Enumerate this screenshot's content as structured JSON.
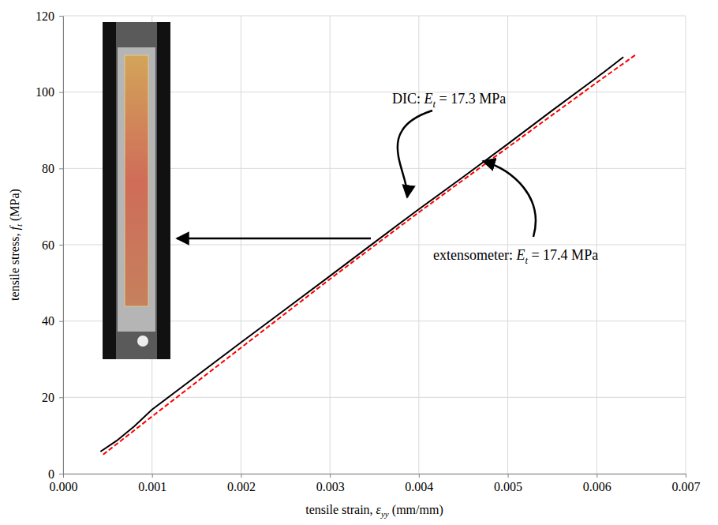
{
  "chart_data": {
    "type": "line",
    "x_label": [
      "tensile strain, ",
      "ε",
      "yy",
      " (mm/mm)"
    ],
    "y_label": [
      "tensile stress, ",
      "f",
      "t",
      " (MPa)"
    ],
    "xlim": [
      0,
      0.007
    ],
    "xticks": [
      {
        "value": 0,
        "label": "0.000"
      },
      {
        "value": 0.001,
        "label": "0.001"
      },
      {
        "value": 0.002,
        "label": "0.002"
      },
      {
        "value": 0.003,
        "label": "0.003"
      },
      {
        "value": 0.004,
        "label": "0.004"
      },
      {
        "value": 0.005,
        "label": "0.005"
      },
      {
        "value": 0.006,
        "label": "0.006"
      },
      {
        "value": 0.007,
        "label": "0.007"
      }
    ],
    "ylim": [
      0,
      120
    ],
    "yticks": [
      0,
      20,
      40,
      60,
      80,
      100,
      120
    ],
    "grid": true,
    "series": [
      {
        "color": "#000000",
        "line_style": "solid",
        "x": [
          0.00042,
          0.0006,
          0.0008,
          0.001,
          0.0015,
          0.002,
          0.0025,
          0.003,
          0.0035,
          0.004,
          0.0045,
          0.005,
          0.0055,
          0.006,
          0.0063
        ],
        "values": [
          5.8,
          8.6,
          12.4,
          16.8,
          25.6,
          34.4,
          43.1,
          51.8,
          60.6,
          69.3,
          77.8,
          86.4,
          95.2,
          103.8,
          109.2
        ]
      },
      {
        "color": "#ff0000",
        "line_style": "dashed",
        "x": [
          0.00045,
          0.001,
          0.002,
          0.003,
          0.004,
          0.005,
          0.006,
          0.00645
        ],
        "values": [
          5.0,
          15.0,
          33.0,
          51.0,
          68.5,
          85.5,
          102.5,
          110.0
        ]
      }
    ],
    "annotations": [
      [
        "DIC: ",
        "E",
        "t",
        " = 17.3 MPa"
      ],
      [
        "extensometer: ",
        "E",
        "t",
        " = 17.4 MPa"
      ]
    ]
  }
}
